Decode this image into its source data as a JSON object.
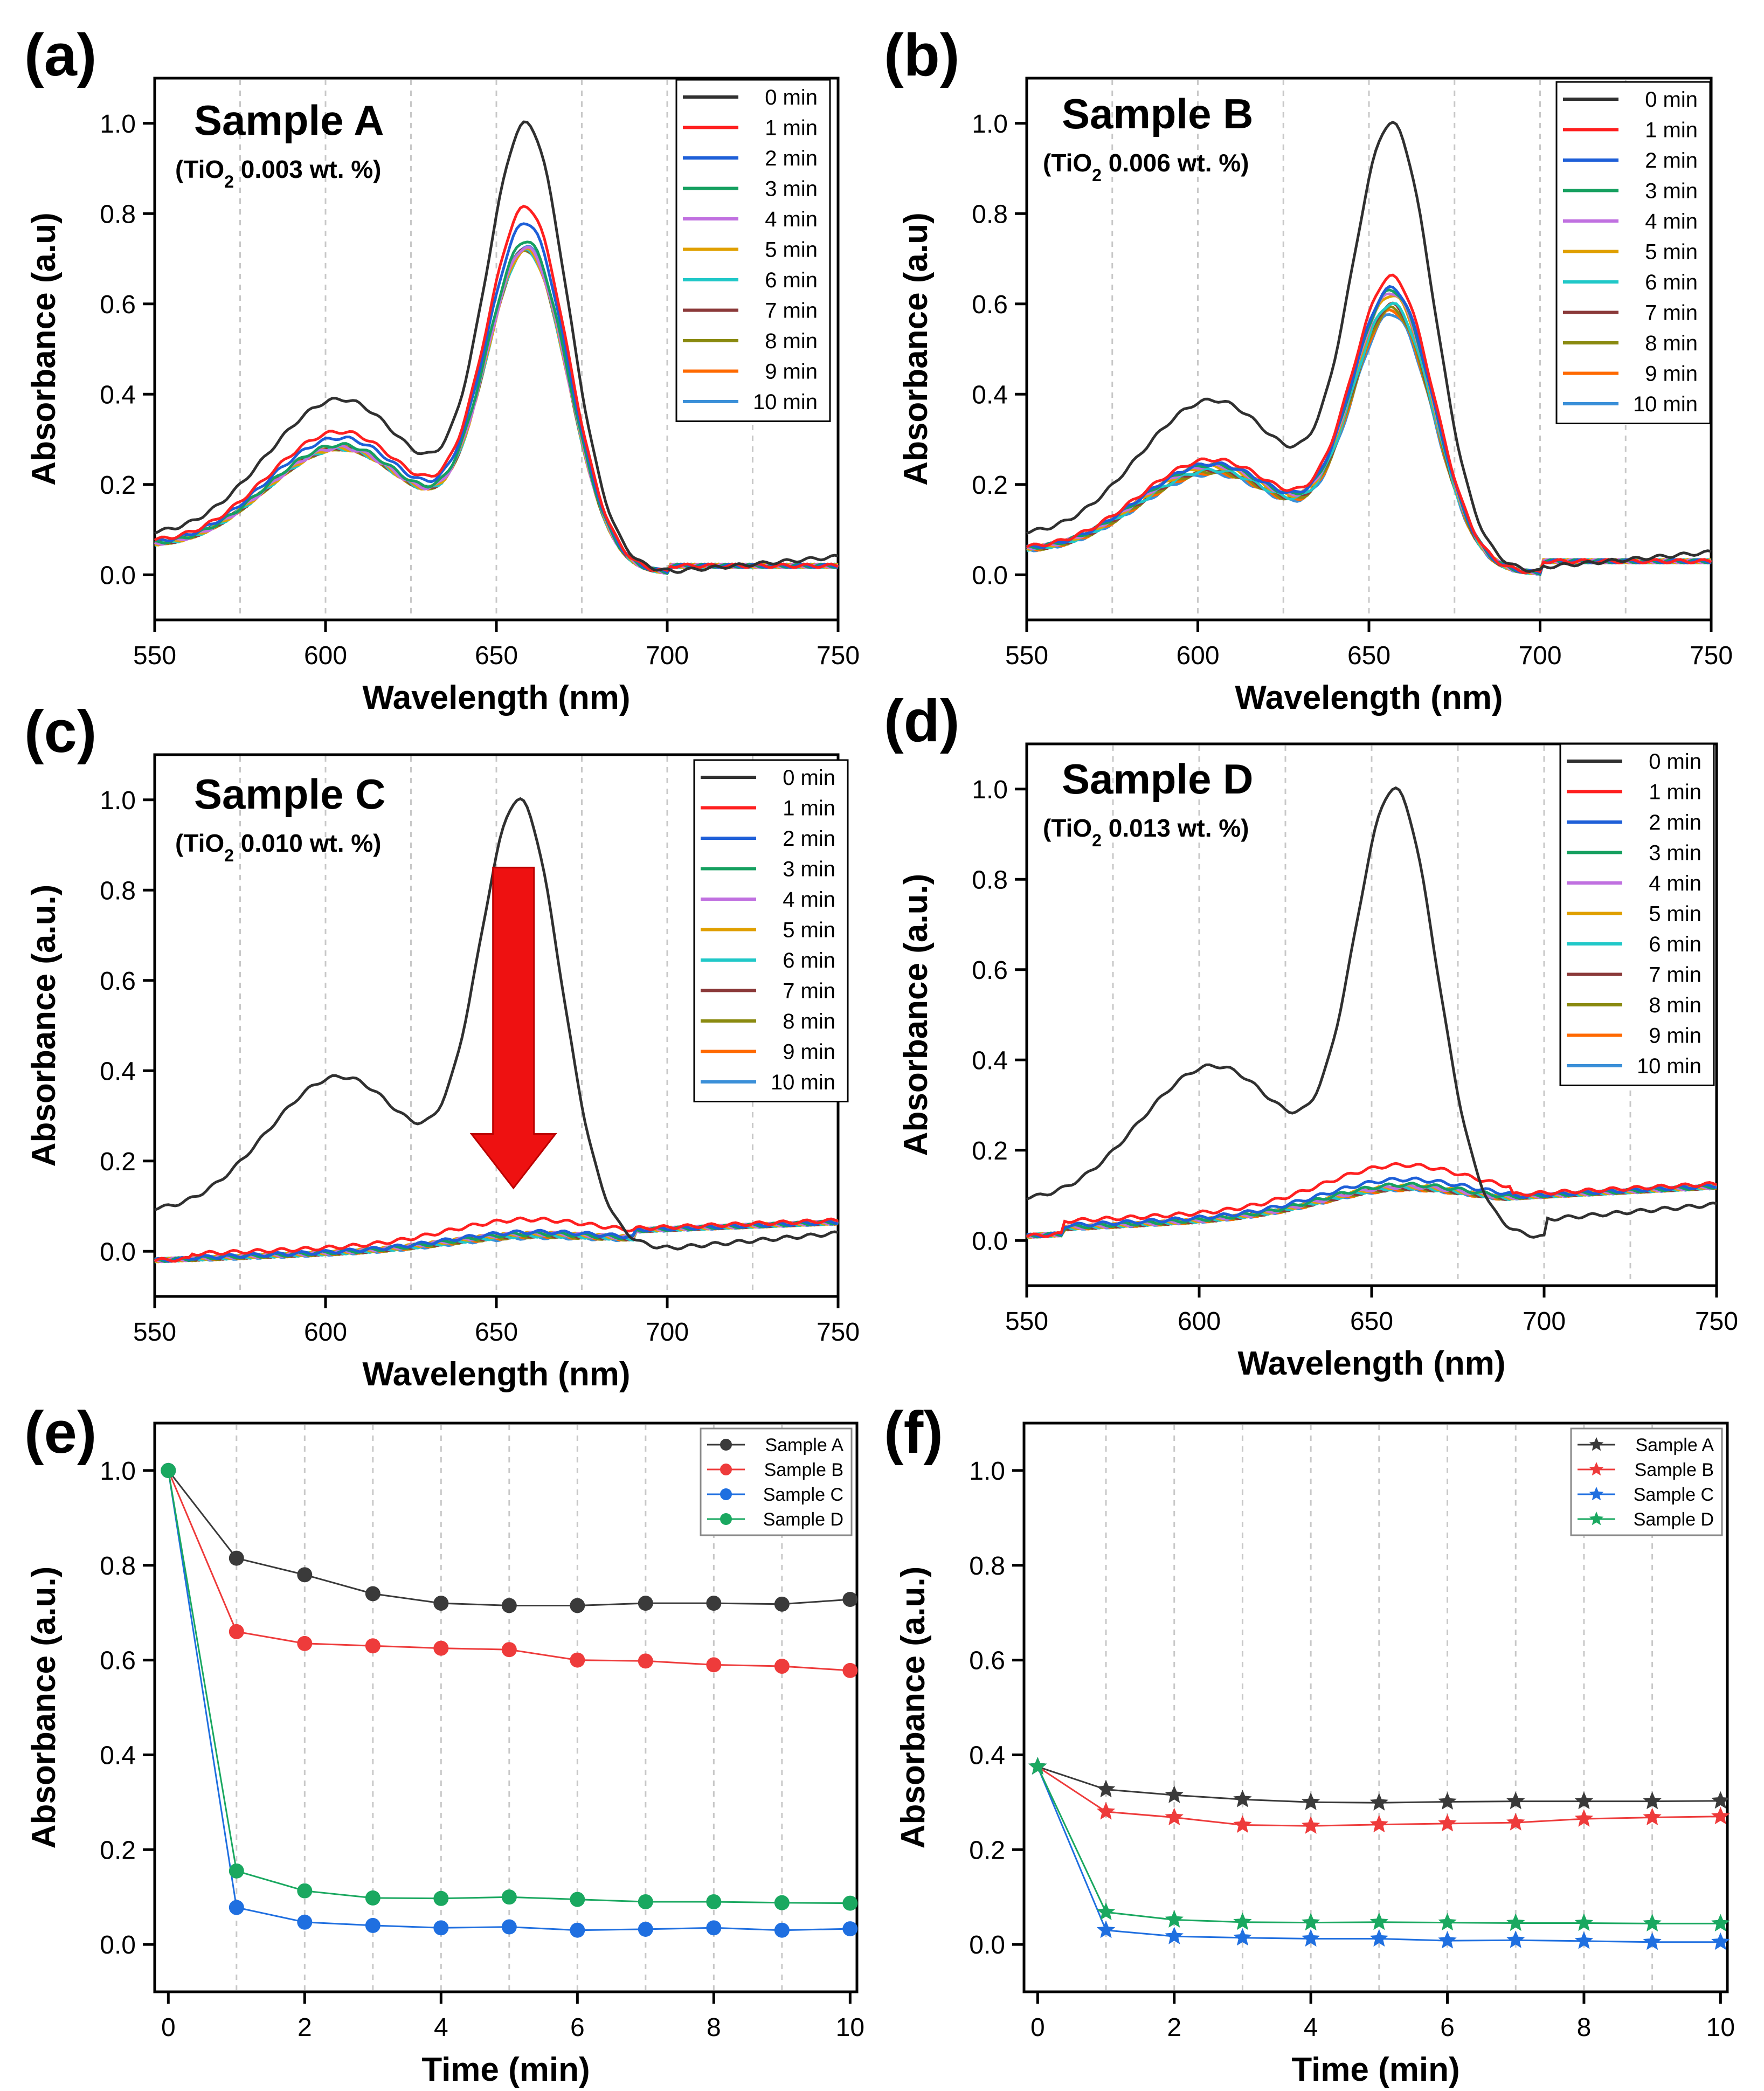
{
  "figure": {
    "panel_labels": [
      "(a)",
      "(b)",
      "(c)",
      "(d)",
      "(e)",
      "(f)"
    ]
  },
  "time_legend": [
    "0 min",
    "1 min",
    "2 min",
    "3 min",
    "4 min",
    "5 min",
    "6 min",
    "7 min",
    "8 min",
    "9 min",
    "10 min"
  ],
  "time_colors": [
    "#303030",
    "#ff2020",
    "#1e5fd8",
    "#16a060",
    "#c070e0",
    "#e0a000",
    "#20c8c8",
    "#8b3a3a",
    "#8a8a10",
    "#ff6a00",
    "#3a8fd8"
  ],
  "sample_colors": [
    "#3a3a3a",
    "#ee3b3b",
    "#1f6fe0",
    "#1aa860"
  ],
  "chart_data": [
    {
      "panel": "(a)",
      "type": "line",
      "title": "Sample A",
      "subtitle_pre": "(TiO",
      "subtitle_sub": "2",
      "subtitle_post": " 0.003 wt. %)",
      "xlabel": "Wavelength (nm)",
      "ylabel": "Absorbance (a.u)",
      "xlim": [
        550,
        750
      ],
      "ylim": [
        -0.1,
        1.1
      ],
      "xticks": [
        550,
        600,
        650,
        700,
        750
      ],
      "yticks": [
        0.0,
        0.2,
        0.4,
        0.6,
        0.8,
        1.0
      ],
      "grid": "vertical dashed",
      "legend_position": "top-right",
      "x": [
        550,
        560,
        570,
        580,
        590,
        600,
        605,
        610,
        615,
        620,
        625,
        630,
        635,
        640,
        645,
        650,
        655,
        658,
        661,
        665,
        670,
        675,
        680,
        685,
        690,
        695,
        700,
        710,
        720,
        730,
        740,
        750
      ],
      "peaks": [
        1.0,
        0.815,
        0.78,
        0.74,
        0.725,
        0.72,
        0.718,
        0.72,
        0.72,
        0.722,
        0.728
      ],
      "peak_at": 659,
      "baseline": 0.06,
      "floor": 0.02
    },
    {
      "panel": "(b)",
      "type": "line",
      "title": "Sample B",
      "subtitle_pre": "(TiO",
      "subtitle_sub": "2",
      "subtitle_post": " 0.006 wt. %)",
      "xlabel": "Wavelength (nm)",
      "ylabel": "Absorbance (a.u)",
      "xlim": [
        550,
        750
      ],
      "ylim": [
        -0.1,
        1.1
      ],
      "xticks": [
        550,
        600,
        650,
        700,
        750
      ],
      "yticks": [
        0.0,
        0.2,
        0.4,
        0.6,
        0.8,
        1.0
      ],
      "grid": "vertical dashed",
      "legend_position": "top-right",
      "x": [
        550,
        560,
        570,
        580,
        590,
        600,
        605,
        610,
        615,
        620,
        625,
        630,
        635,
        640,
        645,
        650,
        655,
        658,
        661,
        665,
        670,
        675,
        680,
        685,
        690,
        695,
        700,
        710,
        720,
        730,
        740,
        750
      ],
      "peaks": [
        1.0,
        0.66,
        0.635,
        0.63,
        0.625,
        0.62,
        0.6,
        0.598,
        0.59,
        0.585,
        0.578
      ],
      "peak_at": 657,
      "baseline": 0.07,
      "floor": 0.03
    },
    {
      "panel": "(c)",
      "type": "line",
      "title": "Sample C",
      "subtitle_pre": "(TiO",
      "subtitle_sub": "2",
      "subtitle_post": " 0.010 wt. %)",
      "xlabel": "Wavelength (nm)",
      "ylabel": "Absorbance (a.u.)",
      "xlim": [
        550,
        750
      ],
      "ylim": [
        -0.1,
        1.1
      ],
      "xticks": [
        550,
        600,
        650,
        700,
        750
      ],
      "yticks": [
        0.0,
        0.2,
        0.4,
        0.6,
        0.8,
        1.0
      ],
      "grid": "vertical dashed",
      "legend_position": "top-right",
      "annotation": "red down arrow at 655 nm from 0.85 to 0.15",
      "x": [
        550,
        560,
        570,
        580,
        590,
        600,
        605,
        610,
        615,
        620,
        625,
        630,
        635,
        640,
        645,
        650,
        655,
        658,
        661,
        665,
        670,
        675,
        680,
        685,
        690,
        695,
        700,
        710,
        720,
        730,
        740,
        750
      ],
      "peaks": [
        1.0,
        0.085,
        0.05,
        0.045,
        0.045,
        0.045,
        0.04,
        0.04,
        0.038,
        0.038,
        0.035
      ],
      "peak_at": 657,
      "baseline": 0.06,
      "floor": 0.02
    },
    {
      "panel": "(d)",
      "type": "line",
      "title": "Sample D",
      "subtitle_pre": "(TiO",
      "subtitle_sub": "2",
      "subtitle_post": " 0.013 wt. %)",
      "xlabel": "Wavelength (nm)",
      "ylabel": "Absorbance (a.u.)",
      "xlim": [
        550,
        750
      ],
      "ylim": [
        -0.1,
        1.1
      ],
      "xticks": [
        550,
        600,
        650,
        700,
        750
      ],
      "yticks": [
        0.0,
        0.2,
        0.4,
        0.6,
        0.8,
        1.0
      ],
      "grid": "vertical dashed",
      "legend_position": "top-right",
      "x": [
        550,
        560,
        570,
        580,
        590,
        600,
        605,
        610,
        615,
        620,
        625,
        630,
        635,
        640,
        645,
        650,
        655,
        658,
        661,
        665,
        670,
        675,
        680,
        685,
        690,
        695,
        700,
        710,
        720,
        730,
        740,
        750
      ],
      "peaks": [
        1.0,
        0.155,
        0.115,
        0.1,
        0.095,
        0.095,
        0.092,
        0.09,
        0.09,
        0.088,
        0.088
      ],
      "peak_at": 657,
      "baseline": 0.07,
      "floor": 0.06
    },
    {
      "panel": "(e)",
      "type": "line",
      "marker": "circle",
      "xlabel": "Time (min)",
      "ylabel": "Absorbance (a.u.)",
      "xlim": [
        -0.2,
        10.1
      ],
      "ylim": [
        -0.1,
        1.1
      ],
      "xticks": [
        0,
        2,
        4,
        6,
        8,
        10
      ],
      "yticks": [
        0.0,
        0.2,
        0.4,
        0.6,
        0.8,
        1.0
      ],
      "grid": "vertical dashed",
      "legend_position": "top-right",
      "x": [
        0,
        1,
        2,
        3,
        4,
        5,
        6,
        7,
        8,
        9,
        10
      ],
      "series": [
        {
          "name": "Sample A",
          "values": [
            1.0,
            0.815,
            0.78,
            0.74,
            0.72,
            0.715,
            0.715,
            0.72,
            0.72,
            0.718,
            0.728
          ]
        },
        {
          "name": "Sample B",
          "values": [
            1.0,
            0.66,
            0.635,
            0.63,
            0.625,
            0.622,
            0.6,
            0.598,
            0.59,
            0.587,
            0.578
          ]
        },
        {
          "name": "Sample C",
          "values": [
            1.0,
            0.078,
            0.047,
            0.04,
            0.035,
            0.037,
            0.03,
            0.032,
            0.035,
            0.03,
            0.033
          ]
        },
        {
          "name": "Sample D",
          "values": [
            1.0,
            0.155,
            0.113,
            0.098,
            0.097,
            0.1,
            0.095,
            0.09,
            0.09,
            0.088,
            0.087
          ]
        }
      ]
    },
    {
      "panel": "(f)",
      "type": "line",
      "marker": "star",
      "xlabel": "Time (min)",
      "ylabel": "Absorbance (a.u.)",
      "xlim": [
        -0.2,
        10.1
      ],
      "ylim": [
        -0.1,
        1.1
      ],
      "xticks": [
        0,
        2,
        4,
        6,
        8,
        10
      ],
      "yticks": [
        0.0,
        0.2,
        0.4,
        0.6,
        0.8,
        1.0
      ],
      "grid": "vertical dashed",
      "legend_position": "top-right",
      "x": [
        0,
        1,
        2,
        3,
        4,
        5,
        6,
        7,
        8,
        9,
        10
      ],
      "series": [
        {
          "name": "Sample A",
          "values": [
            0.375,
            0.327,
            0.315,
            0.306,
            0.3,
            0.299,
            0.301,
            0.302,
            0.302,
            0.302,
            0.303
          ]
        },
        {
          "name": "Sample B",
          "values": [
            0.375,
            0.28,
            0.268,
            0.252,
            0.25,
            0.253,
            0.255,
            0.257,
            0.265,
            0.268,
            0.27
          ]
        },
        {
          "name": "Sample C",
          "values": [
            0.375,
            0.03,
            0.017,
            0.014,
            0.012,
            0.012,
            0.008,
            0.009,
            0.007,
            0.005,
            0.005
          ]
        },
        {
          "name": "Sample D",
          "values": [
            0.375,
            0.068,
            0.052,
            0.047,
            0.046,
            0.047,
            0.046,
            0.045,
            0.045,
            0.044,
            0.044
          ]
        }
      ]
    }
  ]
}
